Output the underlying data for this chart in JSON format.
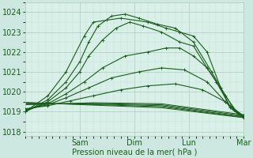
{
  "bg_color": "#cce8e0",
  "plot_bg_color": "#d8f0e8",
  "grid_color_major": "#b0c8c0",
  "grid_color_minor": "#c4ddd8",
  "line_color": "#1a5c1a",
  "text_color": "#1a5c1a",
  "xlabel": "Pression niveau de la mer( hPa )",
  "ylim": [
    1017.8,
    1024.5
  ],
  "yticks": [
    1018,
    1019,
    1020,
    1021,
    1022,
    1023,
    1024
  ],
  "xlim": [
    0,
    96
  ],
  "xtick_positions": [
    24,
    48,
    72,
    96
  ],
  "xtick_labels": [
    "Sam",
    "Dim",
    "Lun",
    "Mar"
  ],
  "rising_series": [
    {
      "x": [
        0,
        10,
        18,
        26,
        30,
        36,
        42,
        54,
        62,
        68,
        74,
        80,
        86,
        90,
        96
      ],
      "y": [
        1019.0,
        1019.8,
        1021.0,
        1022.8,
        1023.5,
        1023.6,
        1023.7,
        1023.5,
        1023.2,
        1023.0,
        1022.8,
        1022.0,
        1020.2,
        1019.2,
        1018.7
      ]
    },
    {
      "x": [
        0,
        10,
        18,
        24,
        28,
        32,
        38,
        44,
        50,
        58,
        66,
        74,
        82,
        88,
        93,
        96
      ],
      "y": [
        1019.0,
        1019.6,
        1020.5,
        1021.5,
        1022.5,
        1023.3,
        1023.8,
        1023.9,
        1023.7,
        1023.4,
        1023.2,
        1022.5,
        1021.0,
        1019.8,
        1019.0,
        1018.75
      ]
    },
    {
      "x": [
        0,
        10,
        18,
        24,
        28,
        34,
        40,
        46,
        52,
        60,
        68,
        74,
        80,
        84,
        90,
        96
      ],
      "y": [
        1019.0,
        1019.5,
        1020.2,
        1021.0,
        1021.8,
        1022.6,
        1023.2,
        1023.5,
        1023.3,
        1023.0,
        1022.5,
        1022.3,
        1021.2,
        1020.5,
        1019.3,
        1018.8
      ]
    },
    {
      "x": [
        0,
        10,
        18,
        26,
        34,
        44,
        54,
        62,
        68,
        74,
        80,
        86,
        92,
        96
      ],
      "y": [
        1019.1,
        1019.4,
        1019.9,
        1020.5,
        1021.2,
        1021.8,
        1022.0,
        1022.2,
        1022.2,
        1021.8,
        1021.2,
        1020.2,
        1019.1,
        1018.75
      ]
    },
    {
      "x": [
        0,
        10,
        18,
        28,
        38,
        50,
        60,
        70,
        80,
        88,
        94,
        96
      ],
      "y": [
        1019.1,
        1019.35,
        1019.7,
        1020.2,
        1020.7,
        1021.0,
        1021.2,
        1021.1,
        1020.5,
        1019.5,
        1018.85,
        1018.75
      ]
    },
    {
      "x": [
        0,
        10,
        20,
        30,
        42,
        54,
        66,
        78,
        88,
        94,
        96
      ],
      "y": [
        1019.15,
        1019.3,
        1019.55,
        1019.8,
        1020.1,
        1020.3,
        1020.4,
        1020.1,
        1019.5,
        1018.9,
        1018.8
      ]
    }
  ],
  "flat_series": [
    {
      "x": [
        0,
        30,
        60,
        96
      ],
      "y": [
        1019.35,
        1019.45,
        1019.4,
        1018.85
      ]
    },
    {
      "x": [
        0,
        30,
        60,
        96
      ],
      "y": [
        1019.38,
        1019.42,
        1019.35,
        1018.8
      ]
    },
    {
      "x": [
        0,
        30,
        60,
        96
      ],
      "y": [
        1019.41,
        1019.39,
        1019.3,
        1018.75
      ]
    },
    {
      "x": [
        0,
        30,
        60,
        96
      ],
      "y": [
        1019.44,
        1019.36,
        1019.25,
        1018.72
      ]
    },
    {
      "x": [
        0,
        30,
        60,
        96
      ],
      "y": [
        1019.47,
        1019.33,
        1019.2,
        1018.7
      ]
    }
  ]
}
